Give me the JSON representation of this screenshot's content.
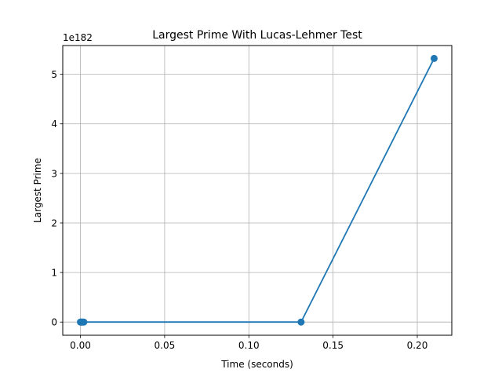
{
  "chart_data": {
    "type": "line",
    "title": "Largest Prime With Lucas-Lehmer Test",
    "xlabel": "Time (seconds)",
    "ylabel": "Largest Prime",
    "y_offset_label": "1e182",
    "xlim": [
      -0.0105,
      0.2205
    ],
    "ylim": [
      -0.266,
      5.58
    ],
    "x_ticks": [
      0.0,
      0.05,
      0.1,
      0.15,
      0.2
    ],
    "x_tick_labels": [
      "0.00",
      "0.05",
      "0.10",
      "0.15",
      "0.20"
    ],
    "y_ticks": [
      0,
      1,
      2,
      3,
      4,
      5
    ],
    "y_tick_labels": [
      "0",
      "1",
      "2",
      "3",
      "4",
      "5"
    ],
    "grid": true,
    "series": [
      {
        "color": "#1f77b4",
        "marker": "circle",
        "x": [
          0.0,
          0.0003,
          0.0006,
          0.001,
          0.0015,
          0.002,
          0.131,
          0.21
        ],
        "y": [
          0,
          0,
          0,
          0,
          0,
          0,
          0,
          5.32
        ]
      }
    ]
  }
}
